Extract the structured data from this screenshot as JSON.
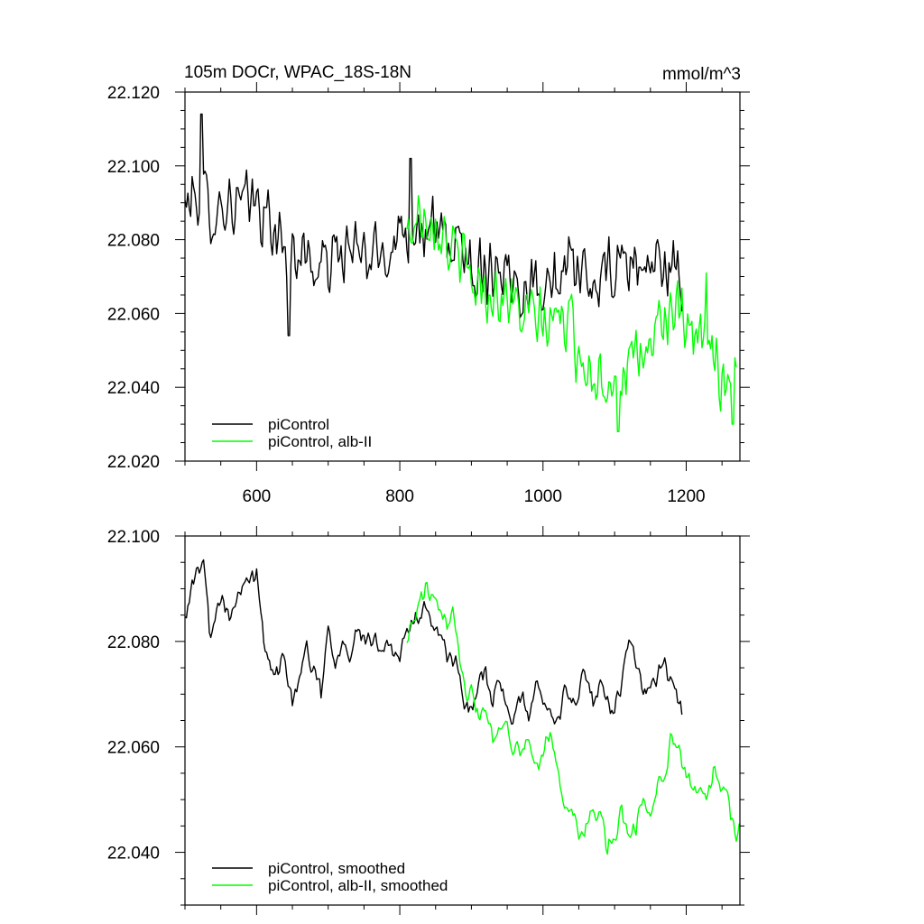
{
  "chart_data": [
    {
      "type": "line",
      "title": "105m DOCr, WPAC_18S-18N",
      "units": "mmol/m^3",
      "xlim": [
        500,
        1275
      ],
      "ylim": [
        22.02,
        22.12
      ],
      "xticks": [
        600,
        800,
        1000,
        1200
      ],
      "xtick_labels": [
        "600",
        "800",
        "1000",
        "1200"
      ],
      "yticks": [
        22.02,
        22.04,
        22.06,
        22.08,
        22.1,
        22.12
      ],
      "ytick_labels": [
        "22.020",
        "22.040",
        "22.060",
        "22.080",
        "22.100",
        "22.120"
      ],
      "legend_position": "bottom-left",
      "series": [
        {
          "name": "piControl",
          "color": "#000000",
          "x": [
            500,
            520,
            540,
            560,
            580,
            600,
            620,
            640,
            660,
            680,
            700,
            720,
            740,
            760,
            780,
            800,
            820,
            840,
            860,
            880,
            900,
            920,
            940,
            960,
            980,
            1000,
            1020,
            1040,
            1060,
            1080,
            1100,
            1120,
            1140,
            1160,
            1180,
            1195
          ],
          "y": [
            22.089,
            22.093,
            22.088,
            22.09,
            22.089,
            22.09,
            22.084,
            22.076,
            22.078,
            22.072,
            22.074,
            22.077,
            22.076,
            22.075,
            22.077,
            22.082,
            22.085,
            22.082,
            22.08,
            22.078,
            22.074,
            22.072,
            22.074,
            22.069,
            22.068,
            22.07,
            22.068,
            22.071,
            22.068,
            22.069,
            22.072,
            22.074,
            22.072,
            22.075,
            22.071,
            22.066
          ],
          "noise_amplitude": 0.011,
          "extreme_points": [
            {
              "x": 523,
              "y": 22.114
            },
            {
              "x": 645,
              "y": 22.054
            },
            {
              "x": 815,
              "y": 22.102
            }
          ]
        },
        {
          "name": "piControl, alb-II",
          "color": "#00ff00",
          "x": [
            810,
            830,
            850,
            870,
            890,
            910,
            930,
            950,
            970,
            990,
            1010,
            1030,
            1050,
            1070,
            1090,
            1110,
            1130,
            1150,
            1170,
            1190,
            1210,
            1230,
            1250,
            1270
          ],
          "y": [
            22.081,
            22.088,
            22.087,
            22.078,
            22.072,
            22.067,
            22.066,
            22.064,
            22.06,
            22.058,
            22.057,
            22.06,
            22.05,
            22.044,
            22.043,
            22.045,
            22.045,
            22.052,
            22.061,
            22.058,
            22.051,
            22.053,
            22.043,
            22.047
          ],
          "noise_amplitude": 0.011,
          "extreme_points": [
            {
              "x": 1105,
              "y": 22.028
            },
            {
              "x": 1265,
              "y": 22.03
            },
            {
              "x": 1228,
              "y": 22.071
            }
          ]
        }
      ]
    },
    {
      "type": "line",
      "xlim": [
        500,
        1275
      ],
      "ylim": [
        22.03,
        22.1
      ],
      "xticks": [
        600,
        800,
        1000,
        1200
      ],
      "yticks": [
        22.04,
        22.06,
        22.08,
        22.1
      ],
      "ytick_labels": [
        "22.040",
        "22.060",
        "22.080",
        "22.100"
      ],
      "legend_position": "bottom-left",
      "series": [
        {
          "name": "piControl, smoothed",
          "color": "#000000",
          "x": [
            500,
            505,
            510,
            520,
            527,
            535,
            540,
            550,
            565,
            580,
            600,
            610,
            625,
            640,
            650,
            660,
            670,
            680,
            690,
            700,
            710,
            720,
            730,
            740,
            760,
            780,
            800,
            815,
            830,
            845,
            860,
            870,
            880,
            890,
            900,
            910,
            920,
            930,
            940,
            950,
            960,
            970,
            980,
            990,
            1000,
            1010,
            1020,
            1030,
            1040,
            1050,
            1060,
            1070,
            1080,
            1090,
            1100,
            1110,
            1120,
            1130,
            1140,
            1150,
            1160,
            1170,
            1180,
            1190,
            1195
          ],
          "y": [
            22.086,
            22.088,
            22.09,
            22.094,
            22.095,
            22.08,
            22.085,
            22.089,
            22.085,
            22.092,
            22.092,
            22.08,
            22.073,
            22.077,
            22.069,
            22.074,
            22.078,
            22.075,
            22.07,
            22.083,
            22.076,
            22.081,
            22.078,
            22.082,
            22.079,
            22.08,
            22.077,
            22.083,
            22.086,
            22.084,
            22.079,
            22.076,
            22.076,
            22.068,
            22.067,
            22.072,
            22.075,
            22.068,
            22.073,
            22.066,
            22.065,
            22.07,
            22.065,
            22.072,
            22.07,
            22.069,
            22.064,
            22.07,
            22.068,
            22.071,
            22.074,
            22.068,
            22.071,
            22.068,
            22.067,
            22.073,
            22.082,
            22.075,
            22.07,
            22.072,
            22.073,
            22.076,
            22.071,
            22.068,
            22.066
          ],
          "noise_amplitude": 0.0025
        },
        {
          "name": "piControl, alb-II, smoothed",
          "color": "#00ff00",
          "x": [
            810,
            820,
            830,
            838,
            845,
            855,
            865,
            875,
            885,
            893,
            900,
            910,
            920,
            930,
            940,
            950,
            960,
            970,
            980,
            990,
            1000,
            1010,
            1020,
            1030,
            1040,
            1050,
            1060,
            1070,
            1080,
            1090,
            1100,
            1110,
            1120,
            1130,
            1140,
            1150,
            1160,
            1170,
            1180,
            1190,
            1200,
            1210,
            1220,
            1230,
            1240,
            1250,
            1260,
            1270,
            1275
          ],
          "y": [
            22.081,
            22.084,
            22.088,
            22.09,
            22.088,
            22.085,
            22.083,
            22.087,
            22.077,
            22.07,
            22.072,
            22.066,
            22.068,
            22.062,
            22.063,
            22.066,
            22.058,
            22.06,
            22.061,
            22.056,
            22.06,
            22.063,
            22.055,
            22.05,
            22.048,
            22.043,
            22.045,
            22.048,
            22.047,
            22.04,
            22.043,
            22.047,
            22.044,
            22.045,
            22.05,
            22.048,
            22.052,
            22.056,
            22.062,
            22.059,
            22.054,
            22.051,
            22.053,
            22.051,
            22.056,
            22.052,
            22.049,
            22.042,
            22.048
          ],
          "noise_amplitude": 0.0025
        }
      ]
    }
  ]
}
